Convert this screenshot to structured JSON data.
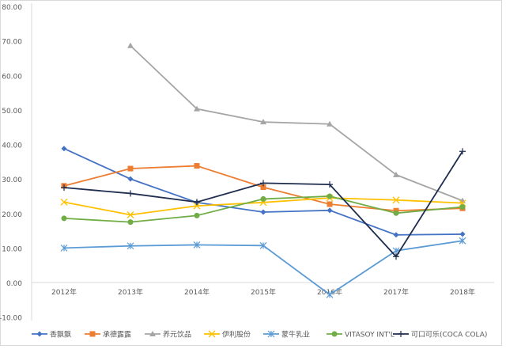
{
  "chart_data": {
    "type": "line",
    "categories": [
      "2012年",
      "2013年",
      "2014年",
      "2015年",
      "2016年",
      "2017年",
      "2018年"
    ],
    "ylim": [
      -10,
      80
    ],
    "yticks": [
      "-10.00",
      "0.00",
      "10.00",
      "20.00",
      "30.00",
      "40.00",
      "50.00",
      "60.00",
      "70.00",
      "80.00"
    ],
    "grid": false,
    "legend": "bottom",
    "series": [
      {
        "name": "香飘飘",
        "color": "#4472c4",
        "marker": "diamond",
        "values": [
          38.8,
          30.0,
          23.2,
          20.4,
          20.9,
          13.8,
          14.0
        ]
      },
      {
        "name": "承德露露",
        "color": "#ed7d31",
        "marker": "square",
        "values": [
          28.0,
          33.0,
          33.8,
          27.6,
          22.7,
          20.8,
          21.5
        ]
      },
      {
        "name": "养元饮品",
        "color": "#a5a5a5",
        "marker": "triangle",
        "values": [
          null,
          68.6,
          50.3,
          46.5,
          45.9,
          31.2,
          23.7
        ]
      },
      {
        "name": "伊利股份",
        "color": "#ffc000",
        "marker": "x",
        "values": [
          23.3,
          19.6,
          22.2,
          23.2,
          24.5,
          23.9,
          23.0
        ]
      },
      {
        "name": "蒙牛乳业",
        "color": "#5b9bd5",
        "marker": "star",
        "values": [
          10.0,
          10.6,
          10.9,
          10.7,
          -3.5,
          9.2,
          12.1
        ]
      },
      {
        "name": "VITASOY INT'L",
        "color": "#70ad47",
        "marker": "circle",
        "values": [
          18.6,
          17.5,
          19.4,
          24.2,
          25.0,
          20.1,
          21.9
        ]
      },
      {
        "name": "可口可乐(COCA COLA)",
        "color": "#1f2d4f",
        "marker": "plus",
        "values": [
          27.5,
          25.8,
          23.3,
          28.8,
          28.4,
          7.5,
          38.0
        ]
      }
    ]
  }
}
